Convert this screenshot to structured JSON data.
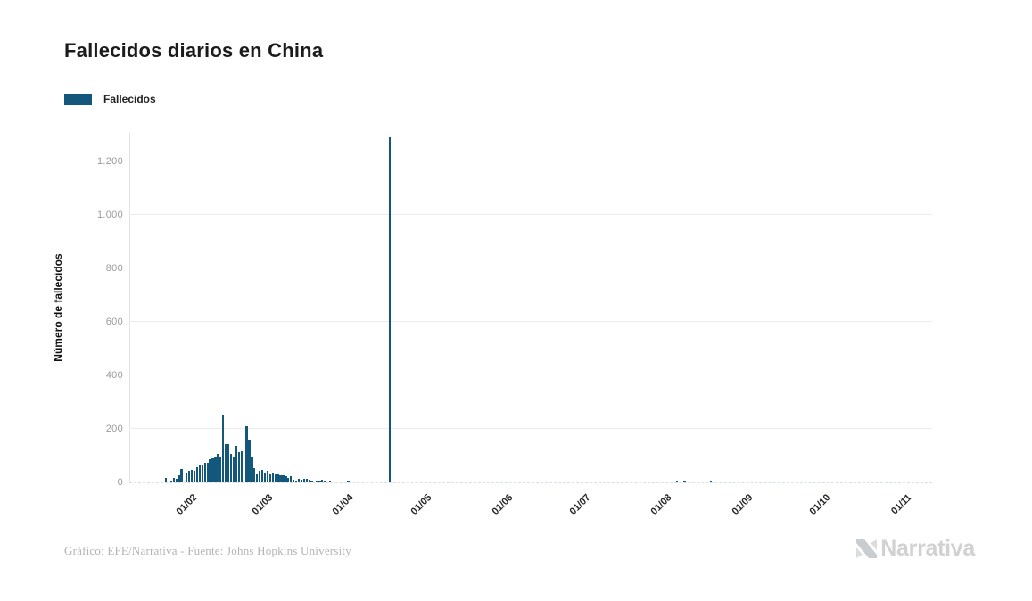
{
  "title": "Fallecidos diarios en China",
  "legend": {
    "label": "Fallecidos",
    "color": "#14577d"
  },
  "y_axis": {
    "title": "Número de fallecidos",
    "ticks": [
      {
        "value": 0,
        "label": "0"
      },
      {
        "value": 200,
        "label": "200"
      },
      {
        "value": 400,
        "label": "400"
      },
      {
        "value": 600,
        "label": "600"
      },
      {
        "value": 800,
        "label": "800"
      },
      {
        "value": 1000,
        "label": "1.000"
      },
      {
        "value": 1200,
        "label": "1.200"
      }
    ]
  },
  "x_axis": {
    "ticks": [
      {
        "label": "01/02",
        "date": "2020-02-01"
      },
      {
        "label": "01/03",
        "date": "2020-03-01"
      },
      {
        "label": "01/04",
        "date": "2020-04-01"
      },
      {
        "label": "01/05",
        "date": "2020-05-01"
      },
      {
        "label": "01/06",
        "date": "2020-06-01"
      },
      {
        "label": "01/07",
        "date": "2020-07-01"
      },
      {
        "label": "01/08",
        "date": "2020-08-01"
      },
      {
        "label": "01/09",
        "date": "2020-09-01"
      },
      {
        "label": "01/10",
        "date": "2020-10-01"
      },
      {
        "label": "01/11",
        "date": "2020-11-01"
      }
    ]
  },
  "footer": {
    "credit": "Gráfico: EFE/Narrativa - Fuente: Johns Hopkins University"
  },
  "logo": {
    "text": "Narrativa"
  },
  "colors": {
    "bar": "#14577d",
    "grid": "#ececec",
    "baseline": "#d7e0e6",
    "axis_line": "#e3e3e3",
    "y_tick_text": "#9b9b9b",
    "x_tick_text": "#272727",
    "title_text": "#1b1b1b",
    "footer_text": "#b3b3b3",
    "logo_text": "#d1d1d1"
  },
  "chart_data": {
    "type": "bar",
    "title": "Fallecidos diarios en China",
    "xlabel": "",
    "ylabel": "Número de fallecidos",
    "series_name": "Fallecidos",
    "ylim": [
      0,
      1310
    ],
    "grid": true,
    "legend_position": "top-left",
    "x_domain": {
      "start": "2020-01-08",
      "end": "2020-11-11"
    },
    "date_start": "2020-01-22",
    "values": [
      17,
      1,
      8,
      16,
      14,
      26,
      49,
      2,
      38,
      43,
      46,
      45,
      58,
      64,
      66,
      73,
      73,
      86,
      89,
      97,
      108,
      97,
      254,
      145,
      142,
      106,
      98,
      136,
      115,
      118,
      2,
      210,
      160,
      95,
      52,
      29,
      44,
      47,
      35,
      42,
      31,
      38,
      31,
      30,
      28,
      27,
      22,
      17,
      22,
      11,
      7,
      13,
      10,
      14,
      13,
      11,
      8,
      3,
      7,
      6,
      10,
      7,
      4,
      6,
      5,
      5,
      3,
      4,
      2,
      1,
      7,
      4,
      3,
      4,
      3,
      2,
      0,
      2,
      1,
      0,
      1,
      0,
      1,
      0,
      1,
      0,
      1290,
      2,
      0,
      1,
      0,
      0,
      1,
      0,
      0,
      1,
      0,
      0,
      0,
      0,
      0,
      0,
      0,
      0,
      0,
      0,
      0,
      0,
      0,
      0,
      0,
      0,
      0,
      0,
      0,
      0,
      0,
      0,
      0,
      0,
      0,
      0,
      0,
      0,
      0,
      0,
      0,
      0,
      0,
      0,
      0,
      0,
      0,
      0,
      0,
      0,
      0,
      0,
      0,
      0,
      0,
      0,
      0,
      0,
      0,
      0,
      0,
      0,
      0,
      0,
      0,
      0,
      0,
      0,
      0,
      0,
      0,
      0,
      0,
      0,
      0,
      0,
      0,
      0,
      0,
      0,
      0,
      0,
      0,
      0,
      0,
      0,
      0,
      1,
      0,
      1,
      1,
      0,
      0,
      2,
      0,
      0,
      2,
      0,
      2,
      3,
      2,
      2,
      3,
      3,
      4,
      5,
      4,
      3,
      4,
      5,
      6,
      5,
      5,
      6,
      4,
      5,
      4,
      3,
      4,
      5,
      3,
      4,
      3,
      6,
      4,
      3,
      2,
      3,
      2,
      3,
      2,
      2,
      1,
      2,
      2,
      1,
      2,
      2,
      1,
      2,
      1,
      1,
      2,
      1,
      1,
      2,
      1,
      1,
      1
    ]
  }
}
